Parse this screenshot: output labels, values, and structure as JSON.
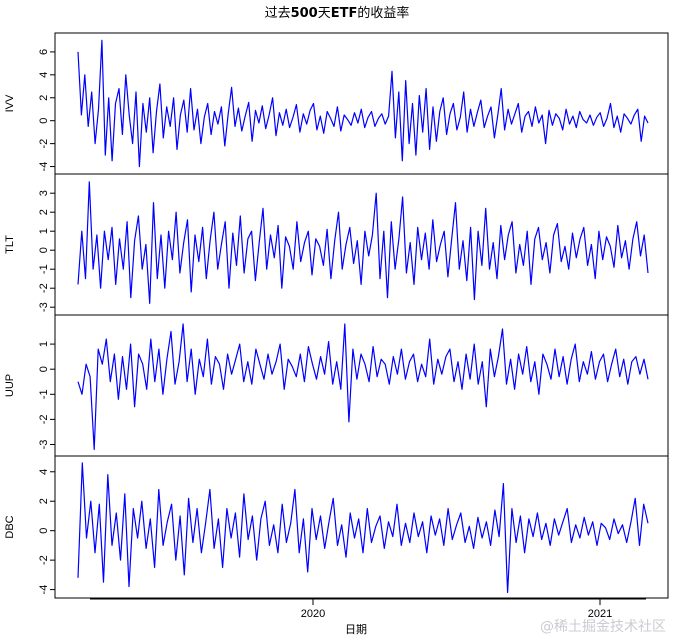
{
  "chart_data": {
    "type": "line",
    "title_parts": [
      "过去",
      "500",
      "天",
      "ETF",
      "的收益率"
    ],
    "xlabel": "日期",
    "x_ticks": [
      "2020",
      "2021"
    ],
    "line_color": "#0000ff",
    "series": [
      {
        "name": "IVV",
        "ylim": [
          -4.3,
          7.3
        ],
        "y_ticks": [
          -4,
          -2,
          0,
          2,
          4,
          6
        ],
        "values": [
          6.0,
          0.5,
          4.0,
          -0.5,
          2.5,
          -2.0,
          1.0,
          7.0,
          -3.0,
          2.0,
          -3.5,
          1.5,
          2.8,
          -1.2,
          4.0,
          0.5,
          -2.0,
          2.5,
          -4.0,
          1.5,
          -1.0,
          2.0,
          -2.8,
          0.8,
          3.2,
          -1.5,
          1.2,
          -0.5,
          2.0,
          -2.5,
          0.5,
          1.8,
          -1.0,
          2.8,
          -0.8,
          1.0,
          -2.0,
          0.3,
          1.5,
          -1.2,
          0.8,
          -0.3,
          1.2,
          -2.2,
          0.6,
          2.9,
          -0.5,
          1.1,
          -0.9,
          0.4,
          1.6,
          -1.8,
          0.9,
          -0.2,
          1.3,
          -0.7,
          0.5,
          2.0,
          -1.3,
          0.7,
          -0.4,
          1.0,
          -0.6,
          0.3,
          1.4,
          -1.0,
          0.6,
          -0.3,
          0.9,
          1.5,
          -0.8,
          0.4,
          -1.1,
          0.8,
          0.2,
          -0.5,
          1.2,
          -0.9,
          0.5,
          0.1,
          -0.4,
          0.7,
          -0.2,
          1.0,
          -0.6,
          0.3,
          0.8,
          -0.5,
          0.2,
          0.6,
          -0.3,
          0.4,
          4.3,
          -1.5,
          2.5,
          -3.5,
          3.5,
          -2.0,
          1.5,
          -3.0,
          2.2,
          -1.0,
          2.8,
          -2.5,
          1.2,
          -1.8,
          0.8,
          2.0,
          -1.2,
          0.6,
          1.5,
          -0.8,
          0.3,
          2.5,
          -1.0,
          1.0,
          -0.5,
          0.7,
          1.8,
          -0.6,
          0.4,
          1.2,
          -1.5,
          0.5,
          2.8,
          -0.8,
          1.0,
          -0.3,
          0.6,
          1.5,
          -1.0,
          0.4,
          0.8,
          -0.5,
          1.2,
          -0.2,
          0.5,
          -2.0,
          0.9,
          -0.4,
          0.6,
          0.2,
          -0.8,
          1.0,
          -0.3,
          0.4,
          -0.6,
          0.8,
          0.1,
          -0.2,
          0.5,
          -0.4,
          0.3,
          0.7,
          -0.5,
          0.2,
          1.5,
          -0.6,
          0.4,
          -1.0,
          0.6,
          0.2,
          -0.3,
          0.5,
          1.0,
          -1.8,
          0.4,
          -0.2
        ]
      },
      {
        "name": "TLT",
        "ylim": [
          -3.2,
          3.8
        ],
        "y_ticks": [
          -3,
          -2,
          -1,
          0,
          1,
          2,
          3
        ],
        "values": [
          -1.8,
          1.0,
          -1.5,
          3.6,
          -1.0,
          0.8,
          -2.0,
          1.0,
          -0.5,
          1.2,
          -1.8,
          0.6,
          -1.0,
          1.5,
          -2.5,
          0.5,
          1.8,
          -1.0,
          0.3,
          -2.8,
          2.5,
          -1.5,
          0.8,
          -2.0,
          1.0,
          -0.5,
          2.0,
          -1.2,
          0.4,
          1.6,
          -2.2,
          0.8,
          -0.6,
          1.2,
          -1.5,
          0.5,
          2.0,
          -1.0,
          0.3,
          1.5,
          -2.0,
          0.9,
          -0.8,
          1.8,
          -1.2,
          0.6,
          1.0,
          -1.6,
          0.4,
          2.2,
          -1.0,
          0.8,
          -0.4,
          1.3,
          -2.0,
          0.7,
          0.2,
          -1.0,
          1.5,
          -0.6,
          0.4,
          1.0,
          -1.3,
          0.6,
          0.2,
          -0.8,
          1.1,
          -1.5,
          0.5,
          2.0,
          -1.0,
          0.3,
          1.2,
          -0.7,
          0.5,
          -1.8,
          1.0,
          -0.3,
          0.8,
          3.0,
          -1.5,
          1.0,
          -2.5,
          1.5,
          -1.0,
          0.6,
          2.8,
          -1.2,
          0.4,
          -1.8,
          1.2,
          -0.5,
          0.9,
          -1.0,
          1.6,
          -0.6,
          0.3,
          1.0,
          -1.4,
          0.6,
          2.5,
          -1.0,
          0.5,
          -1.6,
          1.2,
          -2.6,
          1.0,
          -0.8,
          2.2,
          -1.0,
          0.4,
          -1.5,
          1.3,
          -0.5,
          0.8,
          1.5,
          -1.2,
          0.3,
          -0.8,
          1.0,
          -1.8,
          0.6,
          1.2,
          -0.5,
          0.4,
          -1.2,
          0.8,
          1.4,
          -0.6,
          0.2,
          -1.0,
          0.9,
          -0.4,
          0.6,
          1.2,
          -0.8,
          0.3,
          -1.5,
          1.0,
          -0.5,
          0.7,
          0.2,
          -0.9,
          1.3,
          -0.4,
          0.5,
          -1.0,
          0.6,
          1.5,
          -0.3,
          0.8,
          -1.2
        ]
      },
      {
        "name": "UUP",
        "ylim": [
          -3.3,
          2.0
        ],
        "y_ticks": [
          -3,
          -2,
          -1,
          0,
          1
        ],
        "values": [
          -0.5,
          -1.0,
          0.2,
          -0.3,
          -3.2,
          0.8,
          0.2,
          1.2,
          -0.5,
          0.6,
          -1.2,
          0.5,
          -0.8,
          1.0,
          -1.5,
          0.6,
          0.2,
          -0.8,
          1.2,
          -0.5,
          0.8,
          -1.0,
          0.4,
          1.5,
          -0.6,
          0.3,
          1.8,
          -0.5,
          0.8,
          -1.0,
          0.4,
          -0.3,
          1.2,
          -0.6,
          0.5,
          0.2,
          -0.8,
          0.6,
          -0.2,
          0.4,
          1.0,
          -0.5,
          0.3,
          -0.6,
          0.8,
          0.2,
          -0.4,
          0.6,
          -0.2,
          0.3,
          1.0,
          -0.8,
          0.4,
          0.1,
          -0.3,
          0.6,
          -0.5,
          0.9,
          0.2,
          -0.4,
          0.5,
          -0.2,
          1.1,
          -0.6,
          0.3,
          -0.8,
          1.8,
          -2.1,
          0.8,
          -0.4,
          0.6,
          0.2,
          -0.5,
          0.9,
          -0.3,
          0.4,
          0.2,
          -0.6,
          0.5,
          -0.2,
          0.8,
          -0.4,
          0.3,
          0.6,
          -0.5,
          0.2,
          -0.3,
          1.2,
          -0.6,
          0.4,
          -0.2,
          0.5,
          0.8,
          -0.5,
          0.3,
          -0.8,
          0.6,
          -0.4,
          1.0,
          -0.6,
          0.3,
          -1.5,
          0.8,
          -0.3,
          0.5,
          1.6,
          -0.6,
          0.4,
          -0.8,
          0.6,
          -0.2,
          0.9,
          -0.5,
          0.3,
          -1.0,
          0.6,
          0.2,
          -0.4,
          0.8,
          -0.3,
          0.5,
          -0.6,
          0.4,
          1.0,
          -0.5,
          0.3,
          -0.2,
          0.7,
          -0.4,
          0.3,
          0.6,
          -0.5,
          0.2,
          0.8,
          -0.3,
          0.4,
          -0.6,
          0.3,
          0.5,
          -0.2,
          0.4,
          -0.4
        ]
      },
      {
        "name": "DBC",
        "ylim": [
          -4.3,
          4.8
        ],
        "y_ticks": [
          -4,
          -2,
          0,
          2,
          4
        ],
        "values": [
          -3.2,
          4.6,
          -0.5,
          2.0,
          -1.5,
          1.8,
          -3.5,
          3.8,
          -1.0,
          1.2,
          -2.0,
          2.5,
          -3.8,
          1.5,
          -0.5,
          2.0,
          -1.2,
          0.8,
          -2.5,
          2.8,
          -1.0,
          0.6,
          1.8,
          -2.0,
          1.0,
          -3.0,
          2.2,
          -0.8,
          1.5,
          -1.5,
          0.5,
          2.8,
          -1.2,
          0.8,
          -2.5,
          1.5,
          -0.5,
          1.2,
          -1.8,
          2.5,
          -0.6,
          1.0,
          -2.0,
          0.8,
          2.0,
          -1.0,
          0.4,
          -1.5,
          1.8,
          -0.8,
          0.5,
          2.8,
          -1.5,
          0.8,
          -2.8,
          1.5,
          -0.6,
          1.0,
          -1.2,
          0.6,
          2.2,
          -1.0,
          0.4,
          -1.8,
          1.2,
          -0.5,
          0.8,
          -1.5,
          1.5,
          -0.8,
          0.3,
          1.0,
          -1.2,
          0.6,
          -0.4,
          1.8,
          -1.0,
          0.5,
          -0.8,
          1.2,
          -0.4,
          0.6,
          -1.5,
          1.0,
          -0.3,
          0.8,
          -1.0,
          1.5,
          -0.6,
          0.4,
          1.2,
          -0.8,
          0.3,
          -1.2,
          0.9,
          -0.5,
          0.6,
          -1.0,
          1.4,
          -0.4,
          3.2,
          -4.2,
          1.5,
          -0.8,
          1.0,
          -1.5,
          0.8,
          -0.4,
          1.2,
          -0.6,
          0.5,
          -1.0,
          0.8,
          -0.3,
          0.6,
          1.5,
          -0.8,
          0.4,
          -0.5,
          0.9,
          -0.3,
          0.6,
          -1.0,
          0.5,
          0.2,
          -0.6,
          0.8,
          -0.2,
          0.4,
          -0.8,
          0.6,
          2.2,
          -1.0,
          1.8,
          0.5
        ]
      }
    ]
  },
  "watermark": "@稀土掘金技术社区"
}
